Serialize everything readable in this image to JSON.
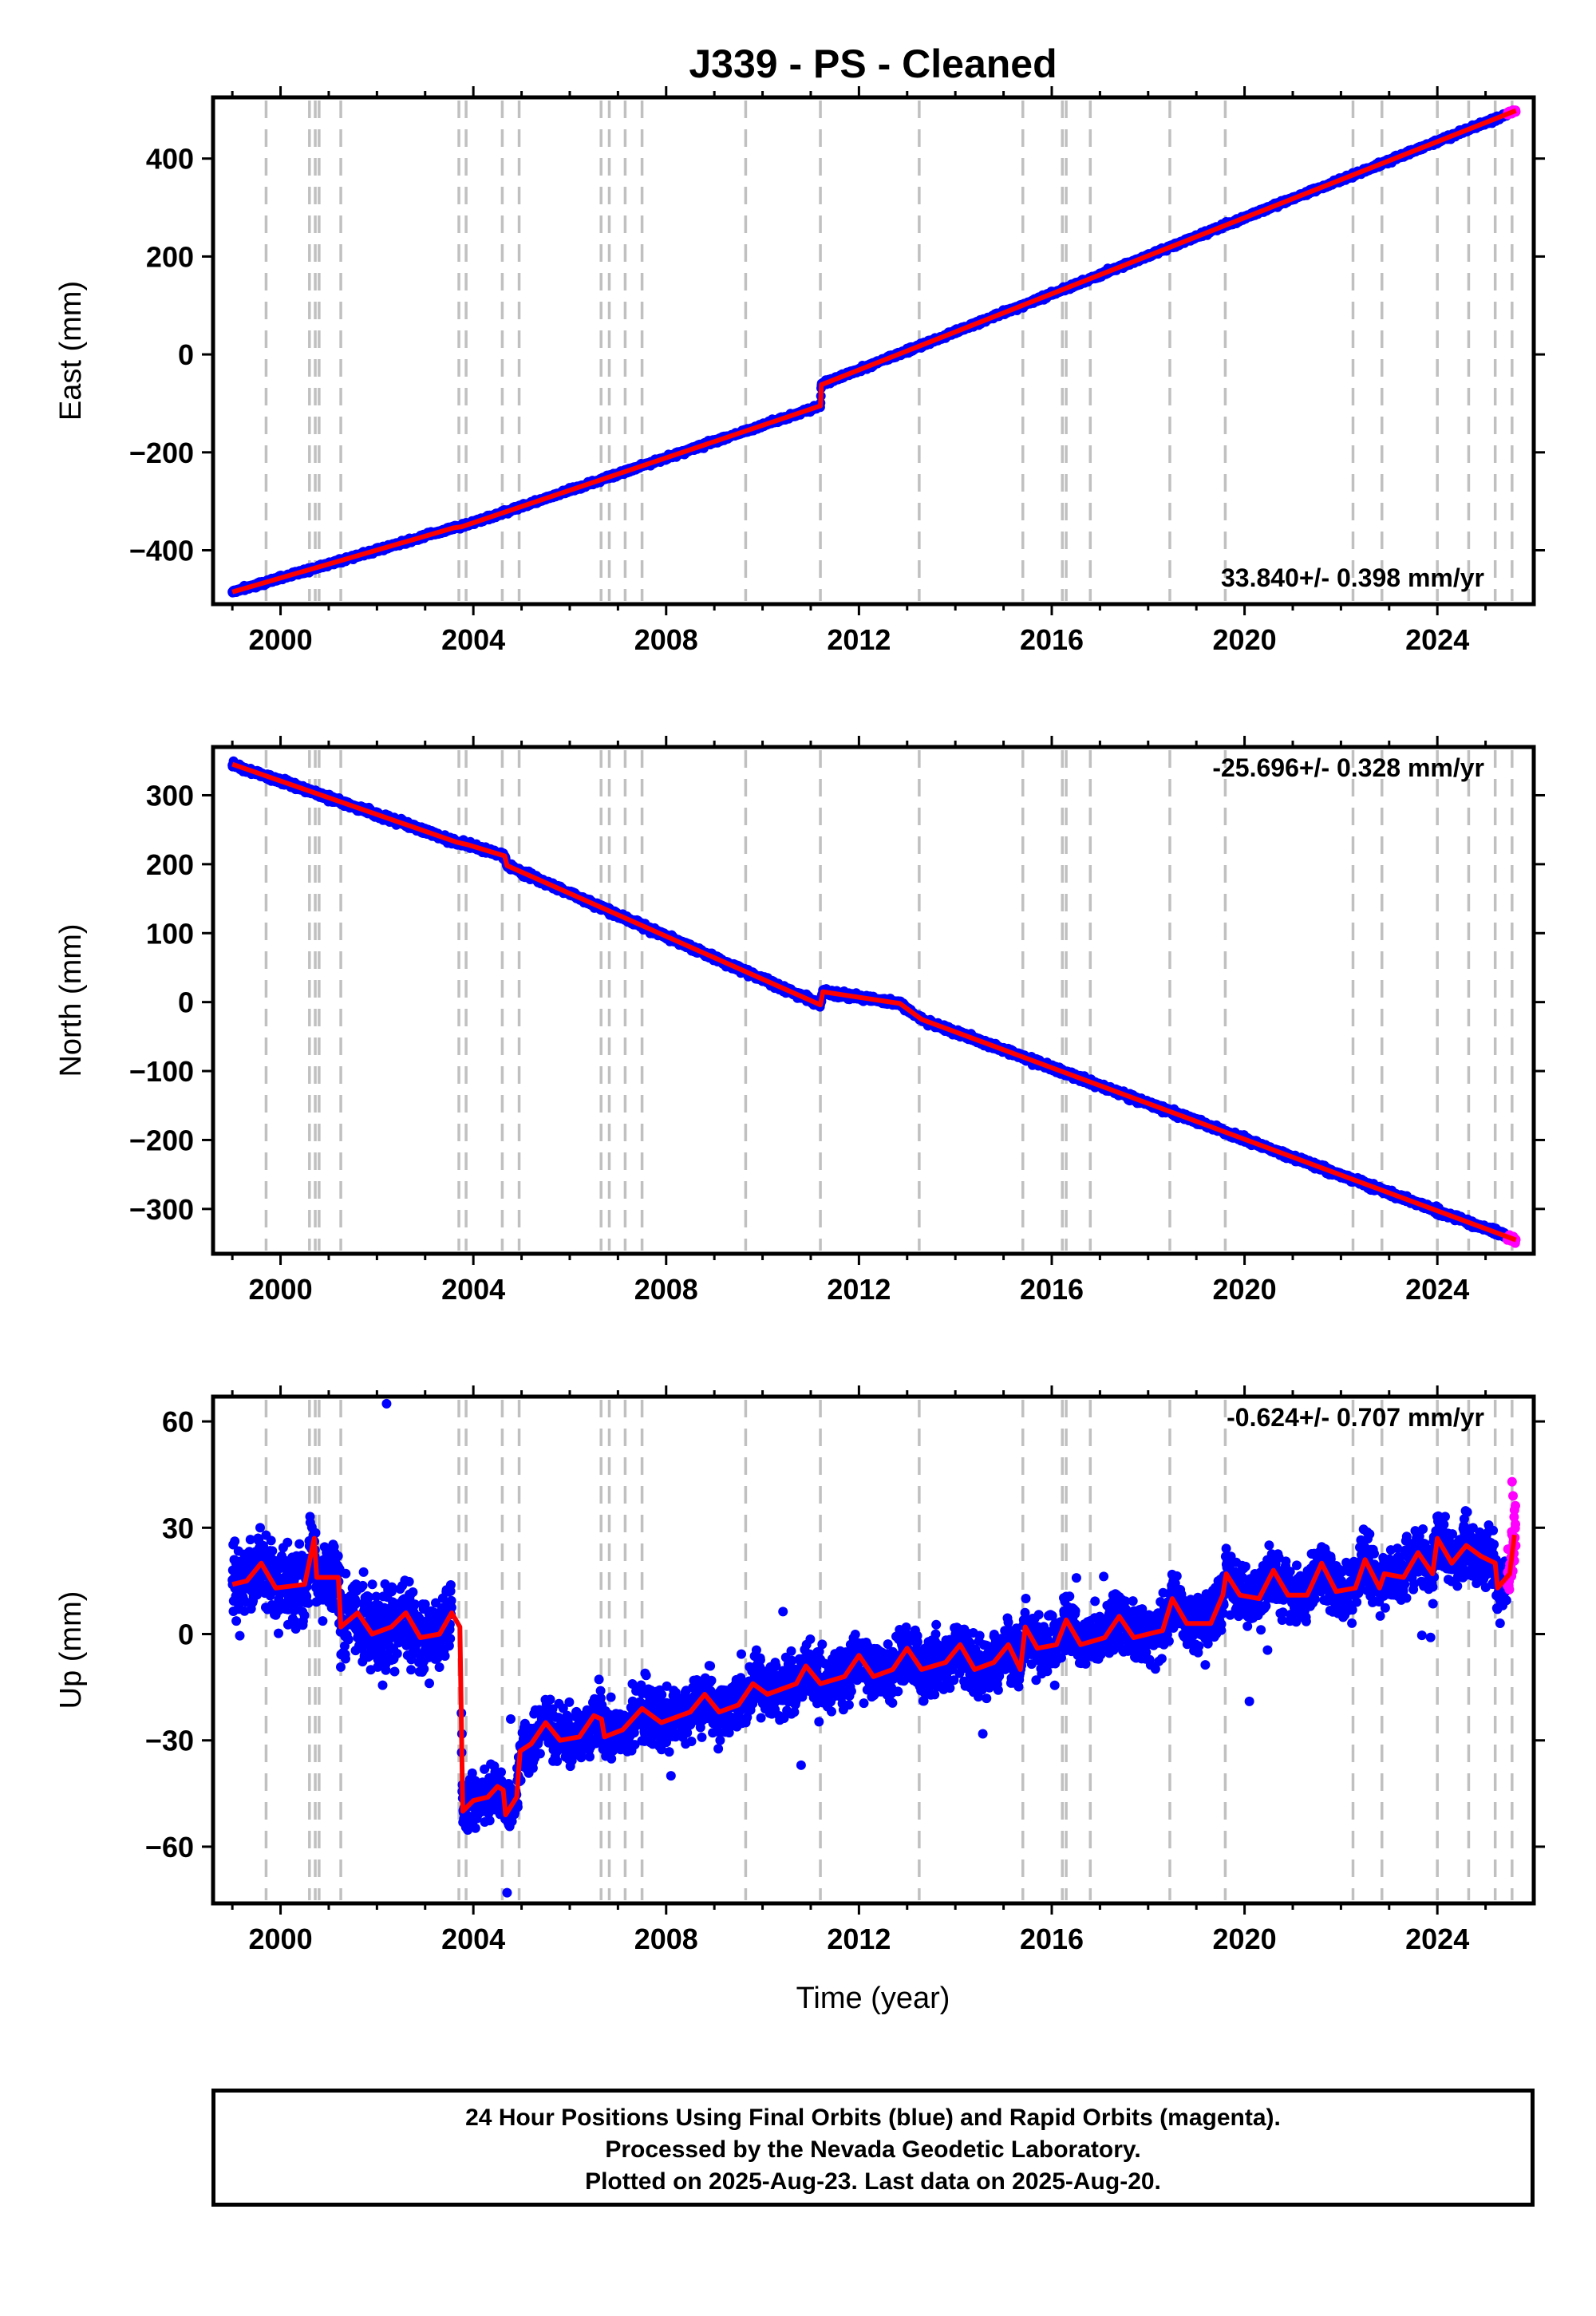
{
  "title": "J339  - PS - Cleaned",
  "xlabel": "Time (year)",
  "xticks": [
    "2000",
    "2004",
    "2008",
    "2012",
    "2016",
    "2020",
    "2024"
  ],
  "colors": {
    "final_orbits": "#0000ff",
    "rapid_orbits": "#ff00ff",
    "model": "#ff0000",
    "event_lines": "#c0c0c0"
  },
  "footer": {
    "line1": "24 Hour Positions Using Final Orbits (blue) and Rapid Orbits (magenta).",
    "line2": "Processed by the Nevada Geodetic Laboratory.",
    "line3": "Plotted on 2025-Aug-23. Last data on 2025-Aug-20."
  },
  "chart_data": [
    {
      "type": "scatter",
      "component": "east",
      "ylabel": "East (mm)",
      "rate_label": "33.840+/- 0.398 mm/yr",
      "xlim": [
        1998.6,
        2026.0
      ],
      "ylim": [
        -510,
        525
      ],
      "yticks": [
        -400,
        -200,
        0,
        200,
        400
      ],
      "x_start": 1999.0,
      "x_end": 2025.63,
      "rapid_from": 2025.45,
      "model_points": [
        [
          1999.0,
          -485
        ],
        [
          2003.6,
          -354
        ],
        [
          2003.75,
          -352
        ],
        [
          2011.2,
          -105
        ],
        [
          2011.22,
          -62
        ],
        [
          2025.63,
          498
        ]
      ],
      "event_lines": [
        1999.7,
        2000.6,
        2000.72,
        2000.8,
        2001.25,
        2003.7,
        2003.85,
        2004.6,
        2004.95,
        2006.65,
        2006.82,
        2007.15,
        2007.5,
        2009.65,
        2011.2,
        2013.25,
        2015.4,
        2016.22,
        2016.3,
        2016.8,
        2018.45,
        2019.6,
        2022.25,
        2022.85,
        2024.0,
        2024.65,
        2025.2,
        2025.55
      ]
    },
    {
      "type": "scatter",
      "component": "north",
      "ylabel": "North (mm)",
      "rate_label": "-25.696+/- 0.328 mm/yr",
      "xlim": [
        1998.6,
        2026.0
      ],
      "ylim": [
        -365,
        370
      ],
      "yticks": [
        -300,
        -200,
        -100,
        0,
        100,
        200,
        300
      ],
      "x_start": 1999.0,
      "x_end": 2025.63,
      "rapid_from": 2025.45,
      "model_points": [
        [
          1999.0,
          345
        ],
        [
          2003.65,
          232
        ],
        [
          2003.9,
          228
        ],
        [
          2004.65,
          212
        ],
        [
          2004.7,
          198
        ],
        [
          2011.2,
          -4
        ],
        [
          2011.25,
          15
        ],
        [
          2011.9,
          8
        ],
        [
          2012.85,
          -2
        ],
        [
          2013.3,
          -25
        ],
        [
          2025.63,
          -345
        ]
      ],
      "event_lines": [
        1999.7,
        2000.6,
        2000.72,
        2000.8,
        2001.25,
        2003.7,
        2003.85,
        2004.6,
        2004.95,
        2006.65,
        2006.82,
        2007.15,
        2007.5,
        2009.65,
        2011.2,
        2013.25,
        2015.4,
        2016.22,
        2016.3,
        2016.8,
        2018.45,
        2019.6,
        2022.25,
        2022.85,
        2024.0,
        2024.65,
        2025.2,
        2025.55
      ]
    },
    {
      "type": "scatter",
      "component": "up",
      "ylabel": "Up (mm)",
      "rate_label": "-0.624+/- 0.707 mm/yr",
      "xlim": [
        1998.6,
        2026.0
      ],
      "ylim": [
        -76,
        67
      ],
      "yticks": [
        -60,
        -30,
        0,
        30,
        60
      ],
      "x_start": 1999.0,
      "x_end": 2025.63,
      "rapid_from": 2025.45,
      "outliers": [
        [
          2002.2,
          65
        ],
        [
          2004.7,
          -73
        ],
        [
          2020.1,
          -19
        ],
        [
          2010.8,
          -37
        ],
        [
          2008.1,
          -40
        ],
        [
          2001.6,
          -1
        ],
        [
          2003.1,
          0
        ]
      ],
      "model_points": [
        [
          1999.0,
          14
        ],
        [
          1999.3,
          15
        ],
        [
          1999.6,
          20
        ],
        [
          1999.9,
          13
        ],
        [
          2000.5,
          14
        ],
        [
          2000.7,
          27
        ],
        [
          2000.75,
          16
        ],
        [
          2001.2,
          16
        ],
        [
          2001.25,
          2
        ],
        [
          2001.6,
          6
        ],
        [
          2001.9,
          0
        ],
        [
          2002.3,
          2
        ],
        [
          2002.6,
          6
        ],
        [
          2002.9,
          -1
        ],
        [
          2003.3,
          0
        ],
        [
          2003.55,
          6
        ],
        [
          2003.72,
          2
        ],
        [
          2003.78,
          -50
        ],
        [
          2004.0,
          -47
        ],
        [
          2004.3,
          -46
        ],
        [
          2004.5,
          -43
        ],
        [
          2004.62,
          -44
        ],
        [
          2004.67,
          -51
        ],
        [
          2004.9,
          -46
        ],
        [
          2004.97,
          -33
        ],
        [
          2005.2,
          -31
        ],
        [
          2005.5,
          -25
        ],
        [
          2005.8,
          -30
        ],
        [
          2006.2,
          -29
        ],
        [
          2006.5,
          -23
        ],
        [
          2006.66,
          -24
        ],
        [
          2006.72,
          -29
        ],
        [
          2007.1,
          -27
        ],
        [
          2007.5,
          -21
        ],
        [
          2007.9,
          -25
        ],
        [
          2008.5,
          -22
        ],
        [
          2008.8,
          -17
        ],
        [
          2009.1,
          -22
        ],
        [
          2009.5,
          -20
        ],
        [
          2009.8,
          -14
        ],
        [
          2010.1,
          -17
        ],
        [
          2010.7,
          -14
        ],
        [
          2010.9,
          -9
        ],
        [
          2011.2,
          -14
        ],
        [
          2011.7,
          -12
        ],
        [
          2012.0,
          -6
        ],
        [
          2012.3,
          -12
        ],
        [
          2012.7,
          -10
        ],
        [
          2013.0,
          -4
        ],
        [
          2013.3,
          -10
        ],
        [
          2013.8,
          -8
        ],
        [
          2014.1,
          -3
        ],
        [
          2014.4,
          -10
        ],
        [
          2014.8,
          -8
        ],
        [
          2015.1,
          -3
        ],
        [
          2015.35,
          -10
        ],
        [
          2015.45,
          2
        ],
        [
          2015.7,
          -4
        ],
        [
          2016.1,
          -3
        ],
        [
          2016.3,
          4
        ],
        [
          2016.6,
          -3
        ],
        [
          2017.1,
          -1
        ],
        [
          2017.4,
          5
        ],
        [
          2017.7,
          -1
        ],
        [
          2018.3,
          1
        ],
        [
          2018.5,
          10
        ],
        [
          2018.8,
          3
        ],
        [
          2019.3,
          3
        ],
        [
          2019.55,
          11
        ],
        [
          2019.62,
          17
        ],
        [
          2019.9,
          11
        ],
        [
          2020.3,
          10
        ],
        [
          2020.6,
          18
        ],
        [
          2020.9,
          11
        ],
        [
          2021.3,
          11
        ],
        [
          2021.6,
          20
        ],
        [
          2021.9,
          12
        ],
        [
          2022.3,
          13
        ],
        [
          2022.5,
          21
        ],
        [
          2022.8,
          13
        ],
        [
          2022.9,
          17
        ],
        [
          2023.3,
          16
        ],
        [
          2023.6,
          23
        ],
        [
          2023.9,
          17
        ],
        [
          2024.0,
          27
        ],
        [
          2024.3,
          20
        ],
        [
          2024.6,
          25
        ],
        [
          2024.9,
          22
        ],
        [
          2025.2,
          20
        ],
        [
          2025.25,
          13
        ],
        [
          2025.5,
          17
        ],
        [
          2025.6,
          28
        ]
      ],
      "event_lines": [
        1999.7,
        2000.6,
        2000.72,
        2000.8,
        2001.25,
        2003.7,
        2003.85,
        2004.6,
        2004.95,
        2006.65,
        2006.82,
        2007.15,
        2007.5,
        2009.65,
        2011.2,
        2013.25,
        2015.4,
        2016.22,
        2016.3,
        2016.8,
        2018.45,
        2019.6,
        2022.25,
        2022.85,
        2024.0,
        2024.65,
        2025.2,
        2025.55
      ]
    }
  ]
}
